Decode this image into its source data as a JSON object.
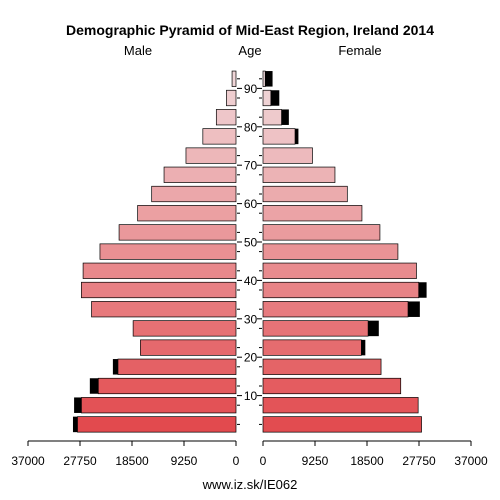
{
  "chart_data": {
    "type": "bar",
    "title": "Demographic Pyramid of Mid-East Region, Ireland 2014",
    "left_header": "Male",
    "center_header": "Age",
    "right_header": "Female",
    "footer": "www.iz.sk/IE062",
    "xlim": [
      0,
      37000
    ],
    "x_ticks": [
      {
        "value": 37000,
        "label": "37000"
      },
      {
        "value": 27750,
        "label": "27750"
      },
      {
        "value": 18500,
        "label": "18500"
      },
      {
        "value": 9250,
        "label": "9250"
      },
      {
        "value": 0,
        "label": "0"
      }
    ],
    "age_ticks": [
      {
        "age": 10,
        "label": "10"
      },
      {
        "age": 20,
        "label": "20"
      },
      {
        "age": 30,
        "label": "30"
      },
      {
        "age": 40,
        "label": "40"
      },
      {
        "age": 50,
        "label": "50"
      },
      {
        "age": 60,
        "label": "60"
      },
      {
        "age": 70,
        "label": "70"
      },
      {
        "age": 80,
        "label": "80"
      },
      {
        "age": 90,
        "label": "90"
      }
    ],
    "age_groups": [
      "0-4",
      "5-9",
      "10-14",
      "15-19",
      "20-24",
      "25-29",
      "30-34",
      "35-39",
      "40-44",
      "45-49",
      "50-54",
      "55-59",
      "60-64",
      "65-69",
      "70-74",
      "75-79",
      "80-84",
      "85-89",
      "90+"
    ],
    "series": [
      {
        "name": "Male",
        "values": [
          28200,
          27500,
          24500,
          21000,
          17000,
          18300,
          25700,
          27500,
          27200,
          24200,
          20800,
          17500,
          15000,
          12800,
          8900,
          5900,
          3500,
          1700,
          700
        ],
        "surplus": [
          800,
          1300,
          1500,
          900,
          0,
          0,
          0,
          0,
          0,
          0,
          0,
          0,
          0,
          0,
          0,
          0,
          0,
          0,
          0
        ]
      },
      {
        "name": "Female",
        "values": [
          28200,
          27600,
          24500,
          21000,
          17500,
          18700,
          25800,
          27700,
          27300,
          24000,
          20800,
          17600,
          15000,
          12800,
          8800,
          5700,
          3300,
          1400,
          400
        ],
        "surplus": [
          0,
          0,
          0,
          0,
          700,
          1900,
          2100,
          1400,
          0,
          0,
          0,
          0,
          0,
          0,
          0,
          600,
          1300,
          1500,
          1300
        ]
      }
    ]
  }
}
